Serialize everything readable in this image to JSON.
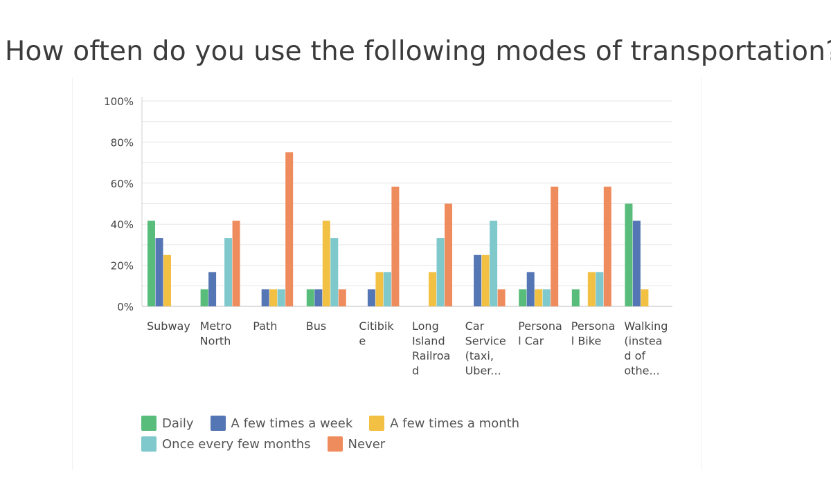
{
  "page": {
    "title": "How often do you use the following modes of transportation?"
  },
  "chart_data": {
    "type": "bar",
    "title": "How often do you use the following modes of transportation?",
    "xlabel": "",
    "ylabel": "",
    "ylim": [
      0,
      100
    ],
    "yticks": [
      "100%",
      "80%",
      "60%",
      "40%",
      "20%",
      "0%"
    ],
    "grid": true,
    "legend_position": "bottom",
    "categories": [
      "Subway",
      "Metro North",
      "Path",
      "Bus",
      "Citibike",
      "Long Island Railroad",
      "Car Service (taxi, Uber...",
      "Personal Car",
      "Personal Bike",
      "Walking (instead of othe..."
    ],
    "category_label_lines": [
      [
        "Subway"
      ],
      [
        "Metro",
        "North"
      ],
      [
        "Path"
      ],
      [
        "Bus"
      ],
      [
        "Citibik",
        "e"
      ],
      [
        "Long",
        "Island",
        "Railroa",
        "d"
      ],
      [
        "Car",
        "Service",
        "(taxi,",
        "Uber..."
      ],
      [
        "Persona",
        "l Car"
      ],
      [
        "Persona",
        "l Bike"
      ],
      [
        "Walking",
        "(instea",
        "d of",
        "othe..."
      ]
    ],
    "series": [
      {
        "name": "Daily",
        "color": "#58bd7a",
        "values": [
          41.7,
          8.3,
          0,
          8.3,
          0,
          0,
          0,
          8.3,
          8.3,
          50.0
        ]
      },
      {
        "name": "A few times a week",
        "color": "#5576b5",
        "values": [
          33.3,
          16.7,
          8.3,
          8.3,
          8.3,
          0,
          25.0,
          16.7,
          0,
          41.7
        ]
      },
      {
        "name": "A few times a month",
        "color": "#f2c042",
        "values": [
          25.0,
          0,
          8.3,
          41.7,
          16.7,
          16.7,
          25.0,
          8.3,
          16.7,
          8.3
        ]
      },
      {
        "name": "Once every few months",
        "color": "#7fc8cc",
        "values": [
          0,
          33.3,
          8.3,
          33.3,
          16.7,
          33.3,
          41.7,
          8.3,
          16.7,
          0
        ]
      },
      {
        "name": "Never",
        "color": "#ef8c5d",
        "values": [
          0,
          41.7,
          75.0,
          8.3,
          58.3,
          50.0,
          8.3,
          58.3,
          58.3,
          0
        ]
      }
    ]
  }
}
